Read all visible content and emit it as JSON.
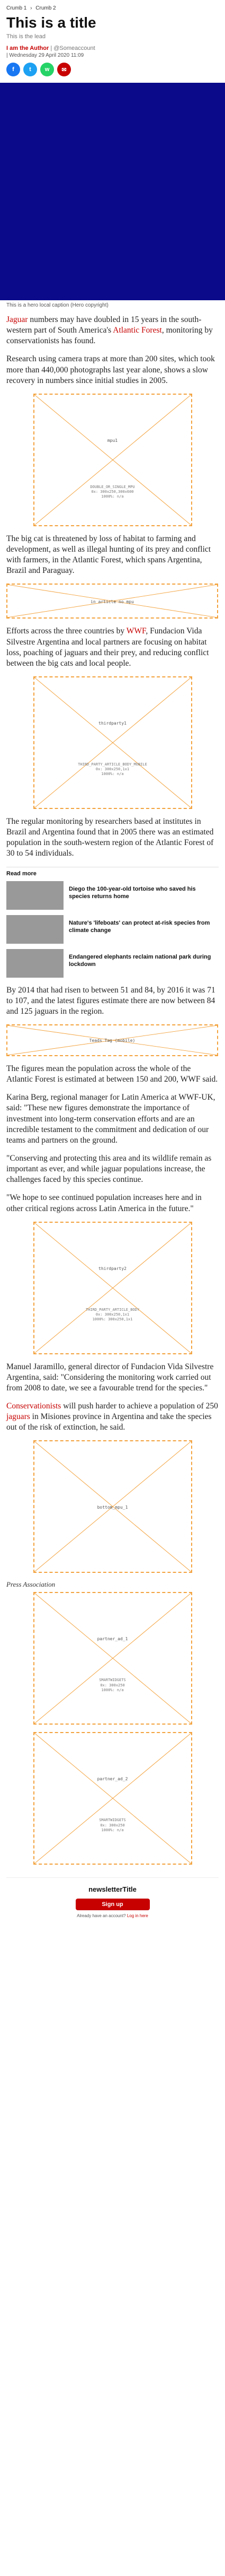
{
  "breadcrumbs": [
    "Crumb 1",
    "Crumb 2"
  ],
  "breadcrumb_separator": "›",
  "title": "This is a title",
  "lead": "This is the lead",
  "byline": {
    "author": "I am the Author",
    "handle": "| @Someaccount"
  },
  "dateline": "| Wednesday 29 April 2020 11:09",
  "share_icons": [
    {
      "name": "facebook-icon",
      "glyph": "f"
    },
    {
      "name": "twitter-icon",
      "glyph": "t"
    },
    {
      "name": "whatsapp-icon",
      "glyph": "w"
    },
    {
      "name": "email-icon",
      "glyph": "✉"
    }
  ],
  "hero": {
    "color": "#0a0a8a",
    "caption": "This is a hero local caption (Hero copyright)"
  },
  "paragraphs": {
    "p1_link": "Jaguar",
    "p1_mid": " numbers may have doubled in 15 years in the south-western part of South America's ",
    "p1_link2": "Atlantic Forest",
    "p1_end": ", monitoring by conservationists has found.",
    "p2": "Research using camera traps at more than 200 sites, which took more than 440,000 photographs last year alone, shows a slow recovery in numbers since initial studies in 2005.",
    "p3": "The big cat is threatened by loss of habitat to farming and development, as well as illegal hunting of its prey and conflict with farmers, in the Atlantic Forest, which spans Argentina, Brazil and Paraguay.",
    "p4_start": "Efforts across the three countries by ",
    "p4_link": "WWF",
    "p4_end": ", Fundacion Vida Silvestre Argentina and local partners are focusing on habitat loss, poaching of jaguars and their prey, and reducing conflict between the big cats and local people.",
    "p5": "The regular monitoring by researchers based at institutes in Brazil and Argentina found that in 2005 there was an estimated population in the south-western region of the Atlantic Forest of 30 to 54 individuals.",
    "p6": "By 2014 that had risen to between 51 and 84, by 2016 it was 71 to 107, and the latest figures estimate there are now between 84 and 125 jaguars in the region.",
    "p7": "The figures mean the population across the whole of the Atlantic Forest is estimated at between 150 and 200, WWF said.",
    "p8": "Karina Berg, regional manager for Latin America at WWF-UK, said: \"These new figures demonstrate the importance of investment into long-term conservation efforts and are an incredible testament to the commitment and dedication of our teams and partners on the ground.",
    "p9": "\"Conserving and protecting this area and its wildlife remain as important as ever, and while jaguar populations increase, the challenges faced by this species continue.",
    "p10": "\"We hope to see continued population increases here and in other critical regions across Latin America in the future.\"",
    "p11": "Manuel Jaramillo, general director of Fundacion Vida Silvestre Argentina, said: \"Considering the monitoring work carried out from 2008 to date, we see a favourable trend for the species.\"",
    "p12_link": "Conservationists",
    "p12_mid": " will push harder to achieve a population of 250 ",
    "p12_link2": "jaguars",
    "p12_end": " in Misiones province in Argentina and take the species out of the risk of extinction, he said."
  },
  "slots": {
    "mpu1": {
      "label": "mpu1",
      "sub": "DOUBLE_OR_SINGLE_MPU\n0x: 300x250,300x600\n1000%: n/a"
    },
    "inarticle": {
      "label": "in article no mpu"
    },
    "thirdparty1": {
      "label": "thirdparty1",
      "sub": "THIRD_PARTY_ARTICLE_BODY_MOBILE\n0x: 300x250,1x1\n1000%: n/a"
    },
    "teads": {
      "label": "Teads Tag (mobile)"
    },
    "thirdparty2": {
      "label": "thirdparty2",
      "sub": "THIRD_PARTY_ARTICLE_BODY\n0x: 300x250,1x1\n1000%: 300x250,1x1"
    },
    "bottom_mpu": {
      "label": "bottom_mpu_1"
    },
    "partner1": {
      "label": "partner_ad_1",
      "sub": "SMARTWIDGETS\n0x: 300x250\n1000%: n/a"
    },
    "partner2": {
      "label": "partner_ad_2",
      "sub": "SMARTWIDGETS\n0x: 300x250\n1000%: n/a"
    }
  },
  "read_more": {
    "heading": "Read more",
    "items": [
      "Diego the 100-year-old tortoise who saved his species returns home",
      "Nature's 'lifeboats' can protect at-risk species from climate change",
      "Endangered elephants reclaim national park during lockdown"
    ]
  },
  "press_label": "Press Association",
  "newsletter": {
    "title": "newsletterTitle",
    "button": "Sign up",
    "login_prefix": "Already have an account? ",
    "login_link": "Log in here"
  },
  "colors": {
    "accent": "#c70000",
    "ad_border": "#f3a23d"
  }
}
